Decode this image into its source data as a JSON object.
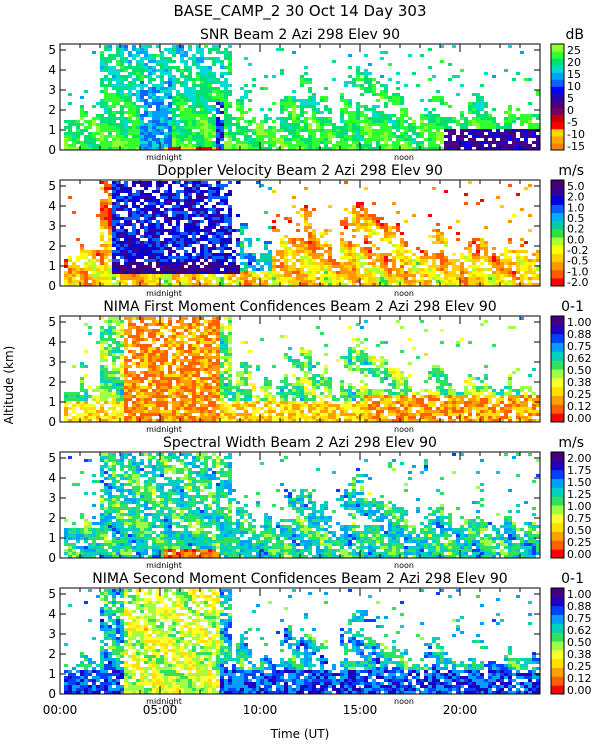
{
  "figure": {
    "title": "BASE_CAMP_2   30 Oct 14 Day 303",
    "xlabel": "Time (UT)",
    "ylabel": "Altitude (km)",
    "x_ticks": [
      "00:00",
      "05:00",
      "10:00",
      "15:00",
      "20:00"
    ],
    "x_tick_values": [
      0,
      5,
      10,
      15,
      20
    ],
    "x_range": [
      0,
      24
    ],
    "y_ticks": [
      "0",
      "1",
      "2",
      "3",
      "4",
      "5"
    ],
    "y_range": [
      0,
      5.3
    ],
    "midnight_label": "midnight",
    "noon_label": "noon",
    "midnight_hour": 5.2,
    "noon_hour": 17.2
  },
  "chart_data": [
    {
      "type": "heatmap",
      "title": "SNR Beam 2 Azi 298 Elev 90",
      "units": "dB",
      "scale_labels": [
        "25",
        "20",
        "15",
        "10",
        "5",
        "0",
        "-5",
        "-10",
        "-15"
      ],
      "scale_colors": [
        "#ff7f00",
        "#ffaa00",
        "#ffd700",
        "#ff0000",
        "#c80000",
        "#7a0060",
        "#4b0082",
        "#2a00b0",
        "#0000ff",
        "#0a64ff",
        "#00a0ff",
        "#00ddd0",
        "#00e070",
        "#30ff30",
        "#90ff30"
      ],
      "xlabel": "Time (UT)",
      "ylabel": "Altitude (km)",
      "xlim": [
        0,
        24
      ],
      "ylim": [
        0,
        5.3
      ]
    },
    {
      "type": "heatmap",
      "title": "Doppler Velocity Beam 2 Azi 298 Elev 90",
      "units": "m/s",
      "scale_labels": [
        "5.0",
        "2.0",
        "1.0",
        "0.5",
        "0.2",
        "0.0",
        "-0.2",
        "-0.5",
        "-1.0",
        "-2.0"
      ],
      "scale_colors": [
        "#ff0000",
        "#ff5a00",
        "#ff9800",
        "#ffd000",
        "#ffff00",
        "#b0ff30",
        "#30e040",
        "#00d0a0",
        "#00b0ff",
        "#0060ff",
        "#0000e0",
        "#3000a0",
        "#480070"
      ],
      "xlabel": "Time (UT)",
      "ylabel": "Altitude (km)",
      "xlim": [
        0,
        24
      ],
      "ylim": [
        0,
        5.3
      ]
    },
    {
      "type": "heatmap",
      "title": "NIMA First Moment Confidences Beam 2 Azi 298 Elev 90",
      "units": "0-1",
      "scale_labels": [
        "1.00",
        "0.88",
        "0.75",
        "0.62",
        "0.50",
        "0.38",
        "0.25",
        "0.12",
        "0.00"
      ],
      "scale_colors": [
        "#ff0000",
        "#ff6000",
        "#ffa000",
        "#ffe000",
        "#ffff30",
        "#a0ff40",
        "#30e060",
        "#00d0c0",
        "#00a0ff",
        "#0040ff",
        "#2000c0",
        "#400080"
      ],
      "xlabel": "Time (UT)",
      "ylabel": "Altitude (km)",
      "xlim": [
        0,
        24
      ],
      "ylim": [
        0,
        5.3
      ]
    },
    {
      "type": "heatmap",
      "title": "Spectral Width Beam 2 Azi 298 Elev 90",
      "units": "m/s",
      "scale_labels": [
        "2.00",
        "1.75",
        "1.50",
        "1.25",
        "1.00",
        "0.75",
        "0.50",
        "0.25",
        "0.00"
      ],
      "scale_colors": [
        "#ff0000",
        "#ff6000",
        "#ffa000",
        "#ffe000",
        "#ffff30",
        "#a0ff40",
        "#30e060",
        "#00d0c0",
        "#00a0ff",
        "#0040ff",
        "#2000c0",
        "#400080"
      ],
      "xlabel": "Time (UT)",
      "ylabel": "Altitude (km)",
      "xlim": [
        0,
        24
      ],
      "ylim": [
        0,
        5.3
      ]
    },
    {
      "type": "heatmap",
      "title": "NIMA Second Moment Confidences Beam 2 Azi 298 Elev 90",
      "units": "0-1",
      "scale_labels": [
        "1.00",
        "0.88",
        "0.75",
        "0.62",
        "0.50",
        "0.38",
        "0.25",
        "0.12",
        "0.00"
      ],
      "scale_colors": [
        "#ff0000",
        "#ff6000",
        "#ffa000",
        "#ffe000",
        "#ffff30",
        "#a0ff40",
        "#30e060",
        "#00d0c0",
        "#00a0ff",
        "#0040ff",
        "#2000c0",
        "#400080"
      ],
      "xlabel": "Time (UT)",
      "ylabel": "Altitude (km)",
      "xlim": [
        0,
        24
      ],
      "ylim": [
        0,
        5.3
      ]
    }
  ]
}
